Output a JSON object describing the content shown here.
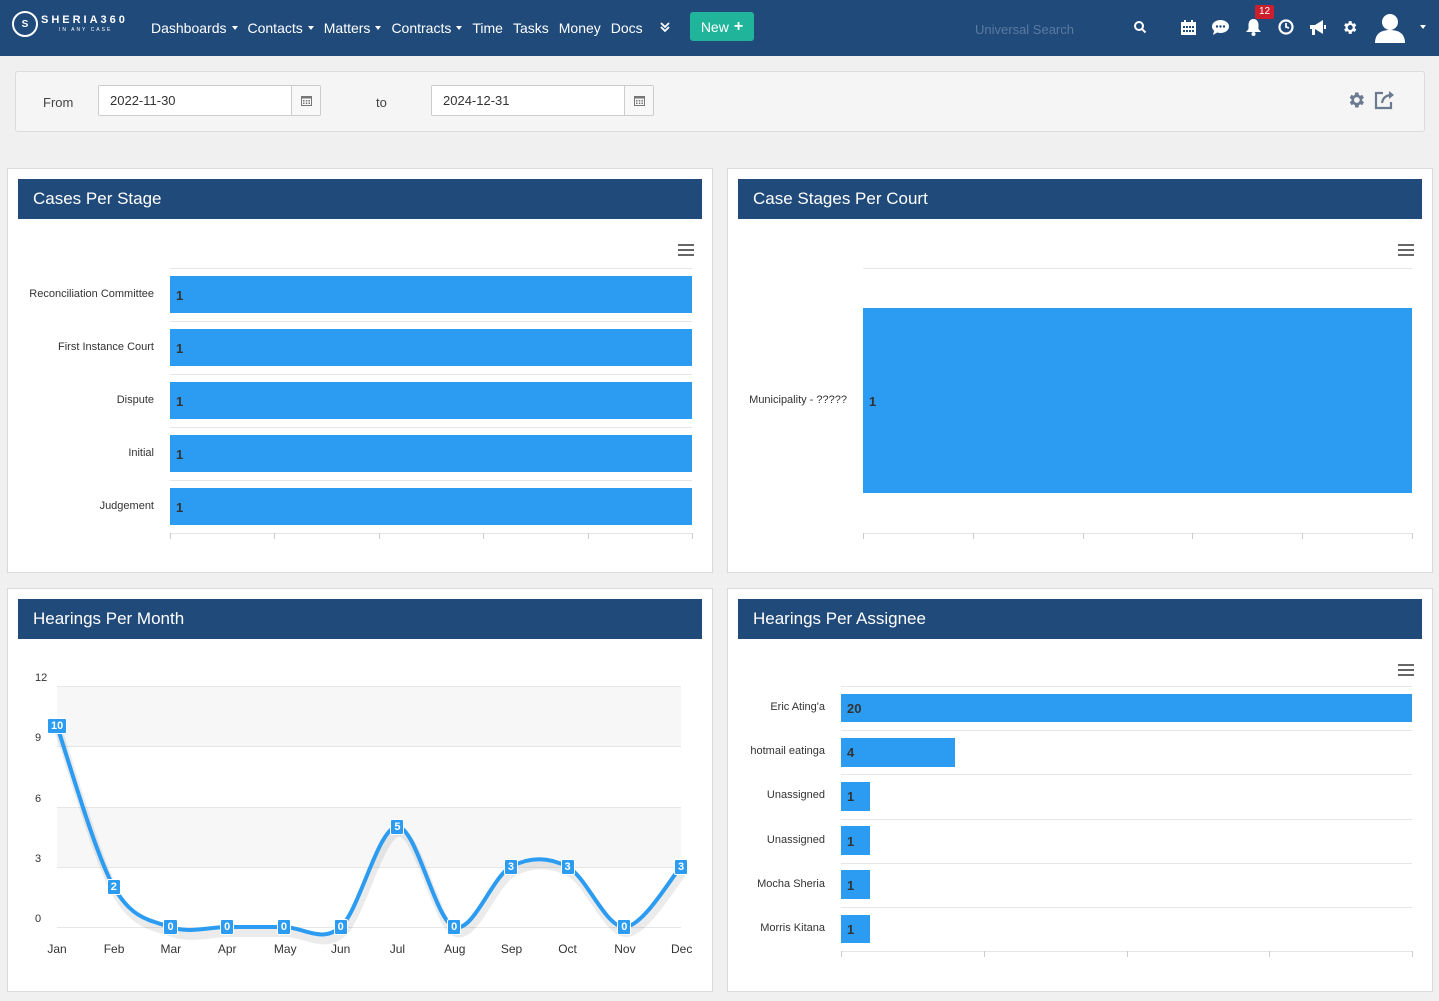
{
  "navbar": {
    "logo_mark": "S",
    "logo_name": "SHERIA360",
    "logo_tagline": "IN ANY CASE",
    "menu": [
      {
        "label": "Dashboards",
        "has_caret": true
      },
      {
        "label": "Contacts",
        "has_caret": true
      },
      {
        "label": "Matters",
        "has_caret": true
      },
      {
        "label": "Contracts",
        "has_caret": true
      },
      {
        "label": "Time",
        "has_caret": false
      },
      {
        "label": "Tasks",
        "has_caret": false
      },
      {
        "label": "Money",
        "has_caret": false
      },
      {
        "label": "Docs",
        "has_caret": false
      }
    ],
    "more_icon": "double-chevron-down-icon",
    "new_button": "New",
    "search_placeholder": "Universal Search",
    "notification_count": "12",
    "icons": [
      "calendar-icon",
      "chat-icon",
      "bell-icon",
      "clock-icon",
      "megaphone-icon",
      "gear-icon",
      "user-avatar-icon"
    ]
  },
  "filters": {
    "from_label": "From",
    "from_date": "2022-11-30",
    "to_label": "to",
    "to_date": "2024-12-31"
  },
  "panels": {
    "cases_per_stage": {
      "title": "Cases Per Stage"
    },
    "case_stages_per_court": {
      "title": "Case Stages Per Court"
    },
    "hearings_per_month": {
      "title": "Hearings Per Month"
    },
    "hearings_per_assignee": {
      "title": "Hearings Per Assignee"
    }
  },
  "colors": {
    "navbar": "#204a7a",
    "bar": "#2b9cf2",
    "new_button": "#20b59a",
    "badge": "#cc1f2d"
  },
  "chart_data": [
    {
      "id": "cases_per_stage",
      "type": "bar",
      "orientation": "horizontal",
      "title": "Cases Per Stage",
      "categories": [
        "Reconciliation Committee",
        "First Instance Court",
        "Dispute",
        "Initial",
        "Judgement"
      ],
      "values": [
        1,
        1,
        1,
        1,
        1
      ],
      "xlim": [
        0,
        1
      ]
    },
    {
      "id": "case_stages_per_court",
      "type": "bar",
      "orientation": "horizontal",
      "title": "Case Stages Per Court",
      "categories": [
        "Municipality - ?????"
      ],
      "values": [
        1
      ],
      "xlim": [
        0,
        1
      ]
    },
    {
      "id": "hearings_per_month",
      "type": "line",
      "title": "Hearings Per Month",
      "categories": [
        "Jan",
        "Feb",
        "Mar",
        "Apr",
        "May",
        "Jun",
        "Jul",
        "Aug",
        "Sep",
        "Oct",
        "Nov",
        "Dec"
      ],
      "values": [
        10,
        2,
        0,
        0,
        0,
        0,
        5,
        0,
        3,
        3,
        0,
        3
      ],
      "yticks": [
        0,
        3,
        6,
        9,
        12
      ],
      "ylim": [
        0,
        12
      ],
      "smooth": true
    },
    {
      "id": "hearings_per_assignee",
      "type": "bar",
      "orientation": "horizontal",
      "title": "Hearings Per Assignee",
      "categories": [
        "Eric Ating'a",
        "hotmail eatinga",
        "Unassigned",
        "Unassigned",
        "Mocha Sheria",
        "Morris Kitana"
      ],
      "values": [
        20,
        4,
        1,
        1,
        1,
        1
      ],
      "xlim": [
        0,
        20
      ]
    }
  ]
}
